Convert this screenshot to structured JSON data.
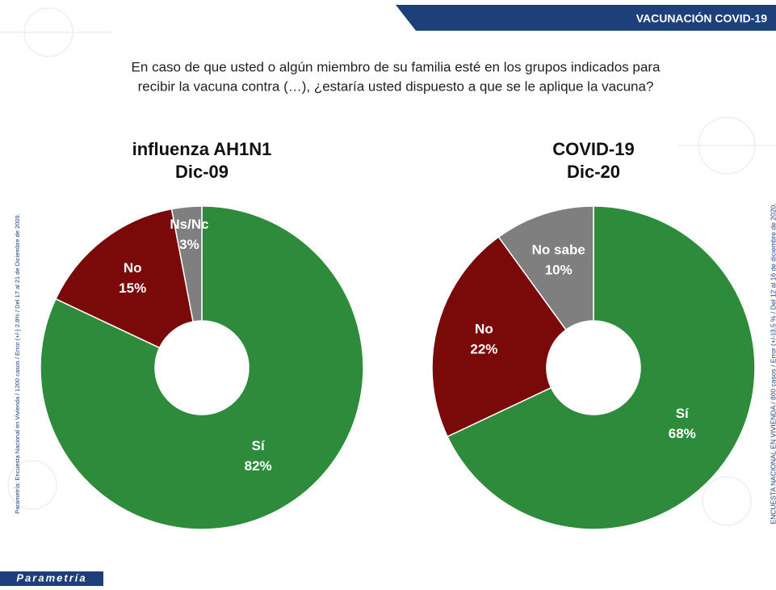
{
  "header": "VACUNACIÓN COVID-19",
  "question": [
    "En caso de que usted o algún miembro de su familia esté en los grupos  indicados para",
    "recibir la vacuna contra (…), ¿estaría usted dispuesto a que se le aplique la vacuna?"
  ],
  "side_notes": {
    "left": "Parametría: Encuesta Nacional en Vivienda / 1200 casos / Error (+/-) 2.8% / Del 17 al 21 de Diciembre de 2009.",
    "right": "ENCUESTA NACIONAL EN VIVIENDA / 800 casos / Error (+/-)3.5 % / Del 12 al 16 de diciembre de 2020."
  },
  "logo": "Parametría",
  "chart_data": [
    {
      "type": "pie",
      "title": "influenza AH1N1",
      "subtitle": "Dic-09",
      "categories": [
        "Sí",
        "No",
        "Ns/Nc"
      ],
      "values": [
        82,
        15,
        3
      ],
      "value_labels": [
        "82%",
        "15%",
        "3%"
      ],
      "colors": [
        "#2e8b3c",
        "#7a0a0a",
        "#7f7f7f"
      ]
    },
    {
      "type": "pie",
      "title": "COVID-19",
      "subtitle": "Dic-20",
      "categories": [
        "Sí",
        "No",
        "No sabe"
      ],
      "values": [
        68,
        22,
        10
      ],
      "value_labels": [
        "68%",
        "22%",
        "10%"
      ],
      "colors": [
        "#2e8b3c",
        "#7a0a0a",
        "#7f7f7f"
      ]
    }
  ]
}
